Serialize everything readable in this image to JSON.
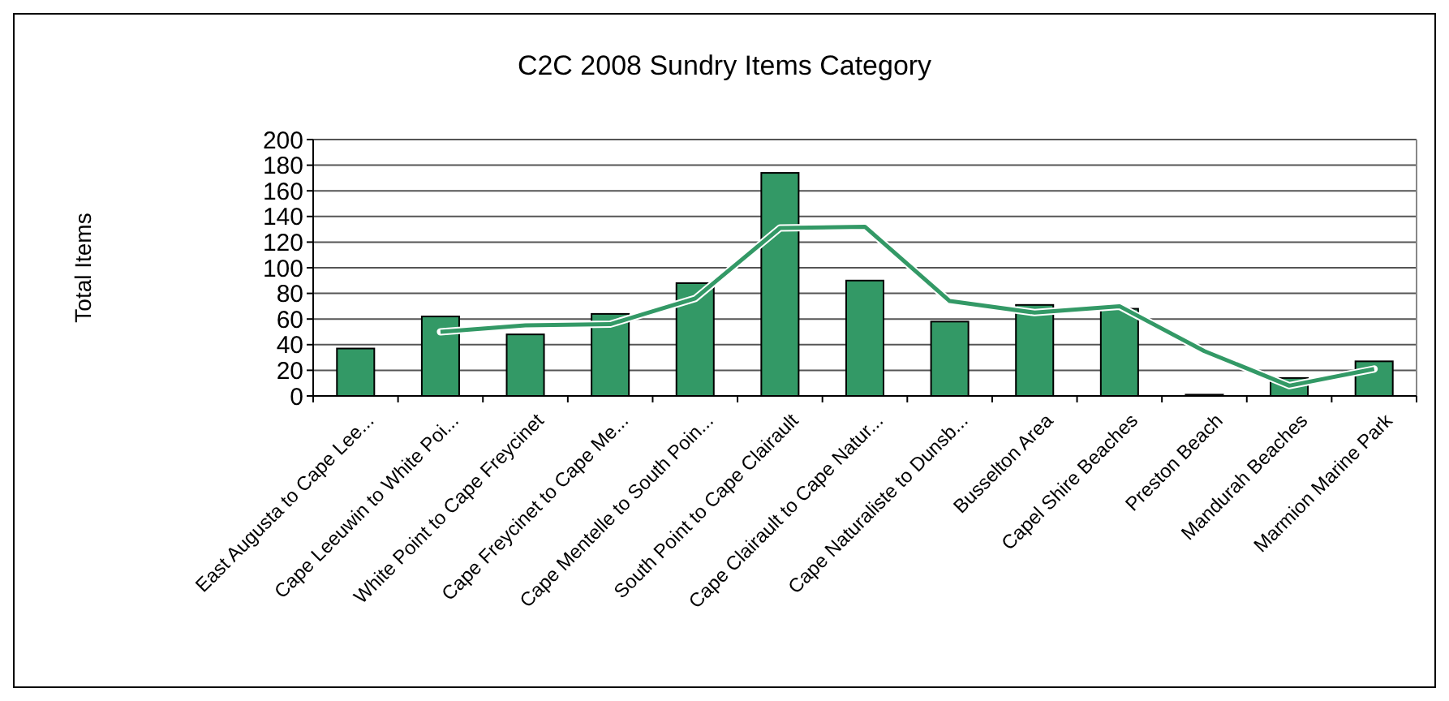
{
  "chart_data": {
    "type": "bar",
    "title": "C2C 2008 Sundry Items Category",
    "ylabel": "Total Items",
    "categories": [
      "East Augusta to Cape Lee...",
      "Cape Leeuwin to White Poi...",
      "White Point to Cape Freycinet",
      "Cape Freycinet to Cape Me...",
      "Cape Mentelle to South Poin...",
      "South Point to Cape Clairault",
      "Cape Clairault to Cape Natur...",
      "Cape Naturaliste to Dunsb...",
      "Busselton Area",
      "Capel Shire Beaches",
      "Preston Beach",
      "Mandurah Beaches",
      "Marmion Marine Park"
    ],
    "series": [
      {
        "color": "#339966",
        "values": [
          37,
          62,
          48,
          64,
          88,
          174,
          90,
          58,
          71,
          68,
          1,
          14,
          27
        ]
      },
      {
        "type": "line",
        "color": "#339966",
        "values": [
          null,
          50,
          55,
          56,
          76,
          131,
          132,
          74,
          65,
          70,
          35,
          8,
          21
        ]
      }
    ],
    "ylim": [
      0,
      200
    ],
    "yticks": [
      0,
      20,
      40,
      60,
      80,
      100,
      120,
      140,
      160,
      180,
      200
    ],
    "grid": "y"
  }
}
